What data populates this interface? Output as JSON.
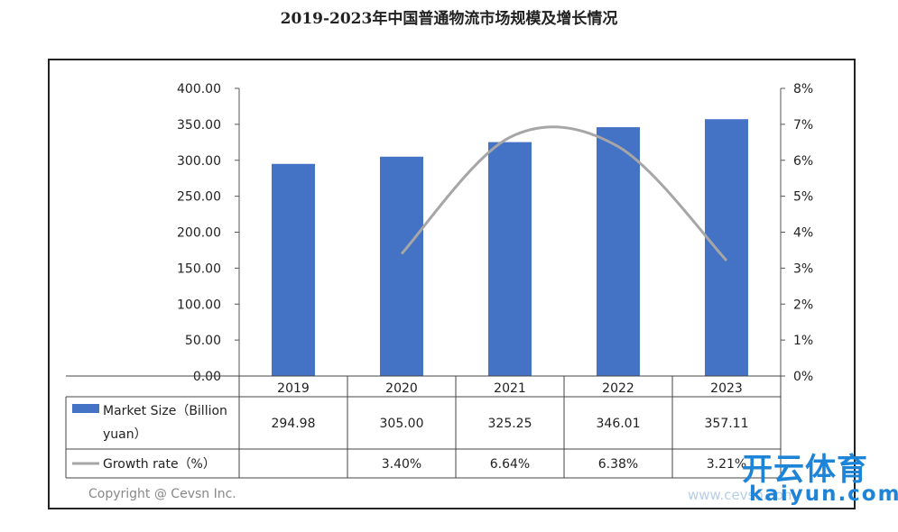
{
  "title": "2019-2023年中国普通物流市场规模及增长情况",
  "chart_data": {
    "type": "bar",
    "categories": [
      "2019",
      "2020",
      "2021",
      "2022",
      "2023"
    ],
    "series": [
      {
        "name": "Market Size（Billion yuan）",
        "type": "bar",
        "axis": "left",
        "color": "#4472c4",
        "values": [
          294.98,
          305.0,
          325.25,
          346.01,
          357.11
        ],
        "labels": [
          "294.98",
          "305.00",
          "325.25",
          "346.01",
          "357.11"
        ]
      },
      {
        "name": "Growth rate（%）",
        "type": "line",
        "axis": "right",
        "color": "#a6a6a6",
        "values": [
          null,
          3.4,
          6.64,
          6.38,
          3.21
        ],
        "labels": [
          "",
          "3.40%",
          "6.64%",
          "6.38%",
          "3.21%"
        ]
      }
    ],
    "left_axis": {
      "min": 0,
      "max": 400,
      "ticks": [
        "0.00",
        "50.00",
        "100.00",
        "150.00",
        "200.00",
        "250.00",
        "300.00",
        "350.00",
        "400.00"
      ]
    },
    "right_axis": {
      "min": 0,
      "max": 8,
      "ticks": [
        "0%",
        "1%",
        "2%",
        "3%",
        "4%",
        "5%",
        "6%",
        "7%",
        "8%"
      ]
    },
    "data_table": true,
    "grid": false,
    "legend": "data-table"
  },
  "legend_rows": {
    "bar_label_line1": "Market Size（Billion",
    "bar_label_line2": "yuan）",
    "line_label": "Growth rate（%）"
  },
  "copyright": "Copyright @ Cevsn Inc.",
  "watermark": {
    "brand": "开云体育",
    "sub": "kaiyun.com",
    "site": "www.cevsn.com"
  }
}
